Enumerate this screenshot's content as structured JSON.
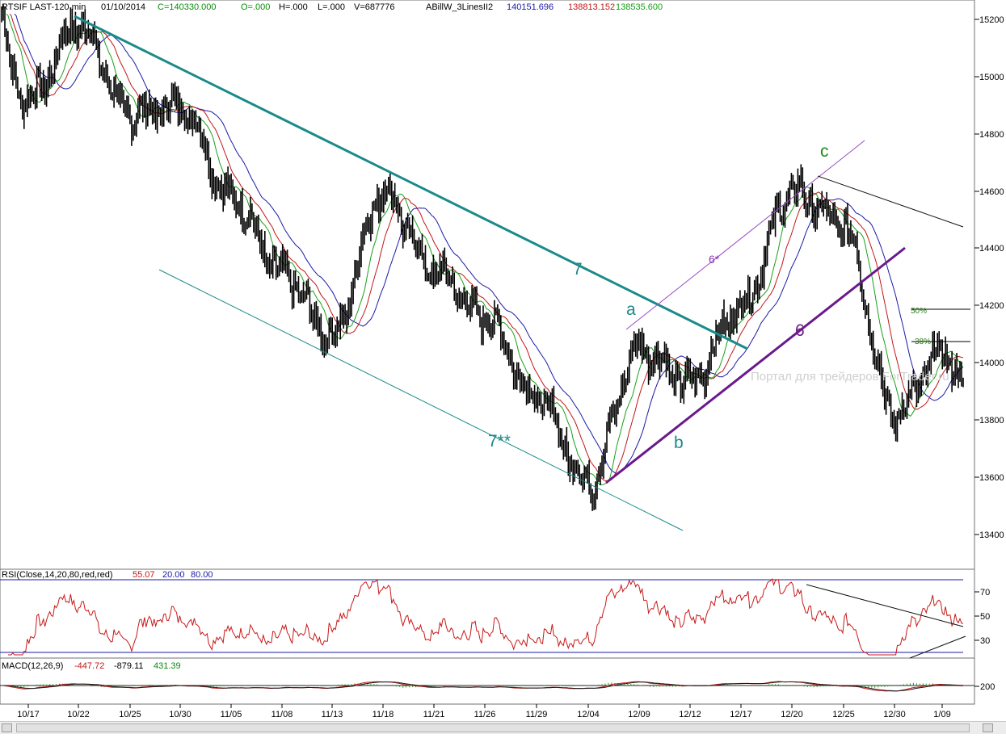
{
  "header": {
    "symbol": "RTSIF LAST-120 min",
    "date": "01/10/2014",
    "close_label": "C=140330.000",
    "open_label": "O=.000",
    "high_label": "H=.000",
    "low_label": "L=.000",
    "volume_label": "V=687776",
    "indicator_name": "ABillW_3LinesII2",
    "line_values": [
      "140151.696",
      "138813.152",
      "138535.600"
    ],
    "line_colors": [
      "#1a1aa8",
      "#c01818",
      "#18a018"
    ]
  },
  "price_axis": {
    "ticks": [
      "15200",
      "15000",
      "14800",
      "14600",
      "14400",
      "14200",
      "14000",
      "13800",
      "13600",
      "13400"
    ]
  },
  "rsi_panel": {
    "label": "RSI(Close,14,20,80,red,red)",
    "values": [
      "55.07",
      "20.00",
      "80.00"
    ],
    "ticks": [
      "70",
      "50",
      "30"
    ]
  },
  "macd_panel": {
    "label": "MACD(12,26,9)",
    "values": [
      "-447.72",
      "-879.11",
      "431.39"
    ],
    "ticks": [
      "200"
    ]
  },
  "date_axis": {
    "labels": [
      "10/17",
      "10/22",
      "10/25",
      "10/30",
      "11/05",
      "11/08",
      "11/13",
      "11/18",
      "11/21",
      "11/26",
      "11/29",
      "12/04",
      "12/09",
      "12/12",
      "12/17",
      "12/20",
      "12/25",
      "12/30",
      "1/09"
    ]
  },
  "wave_labels": {
    "a": "a",
    "b": "b",
    "c": "c",
    "six": "6",
    "six_star": "6*",
    "seven": "7",
    "seven_star": "7**"
  },
  "fib_labels": {
    "fifty": "50%",
    "thirtyeight": "38%"
  },
  "watermark": "Портал для трейдеров  ForTrader.ru",
  "colors": {
    "teal_trend": "#1a8a8a",
    "channel_6": "#6a1a8a",
    "rsi_line": "#c81818",
    "macd_line": "#c81818",
    "signal_line": "#1a1a1a",
    "histogram": "#20a020",
    "wave_green": "#1a8a1a"
  },
  "chart_data": {
    "type": "line",
    "title": "RTSIF LAST-120 min",
    "xlabel": "",
    "ylabel": "",
    "ylim": [
      13250,
      15250
    ],
    "x": [
      "10/17",
      "10/22",
      "10/25",
      "10/30",
      "11/05",
      "11/08",
      "11/13",
      "11/18",
      "11/21",
      "11/26",
      "11/29",
      "12/04",
      "12/09",
      "12/12",
      "12/17",
      "12/20",
      "12/25",
      "12/30",
      "1/09"
    ],
    "series": [
      {
        "name": "price",
        "values": [
          14920,
          15180,
          14870,
          14900,
          14580,
          14310,
          14090,
          14600,
          14320,
          14160,
          13880,
          13580,
          14050,
          13930,
          14200,
          14600,
          14480,
          13820,
          14033
        ]
      }
    ],
    "levels_right": [
      {
        "label": "50%",
        "value": 14190
      },
      {
        "label": "38%",
        "value": 14070
      }
    ]
  }
}
